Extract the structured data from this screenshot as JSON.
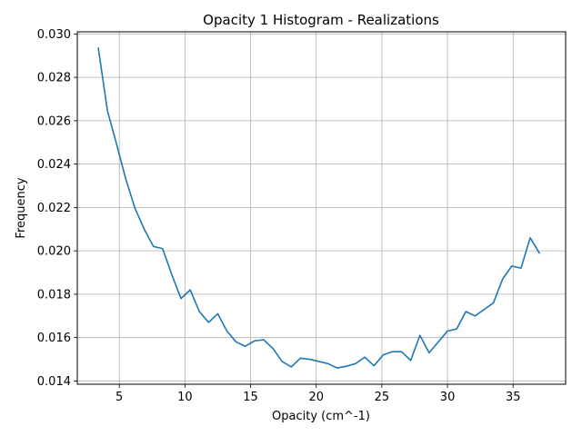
{
  "chart_data": {
    "type": "line",
    "title": "Opacity 1 Histogram - Realizations",
    "xlabel": "Opacity (cm^-1)",
    "ylabel": "Frequency",
    "xlim": [
      1.8,
      39.0
    ],
    "ylim": [
      0.01385,
      0.0301
    ],
    "xticks": [
      5,
      10,
      15,
      20,
      25,
      30,
      35
    ],
    "yticks": [
      0.014,
      0.016,
      0.018,
      0.02,
      0.022,
      0.024,
      0.026,
      0.028,
      0.03
    ],
    "grid": true,
    "line_color": "#1f77b4",
    "series": [
      {
        "x": [
          3.4,
          4.1,
          4.8,
          5.5,
          6.2,
          6.9,
          7.6,
          8.3,
          9.0,
          9.7,
          10.4,
          11.1,
          11.8,
          12.5,
          13.2,
          13.9,
          14.6,
          15.3,
          16.0,
          16.7,
          17.4,
          18.1,
          18.8,
          19.5,
          20.2,
          20.9,
          21.6,
          22.3,
          23.0,
          23.7,
          24.4,
          25.1,
          25.8,
          26.5,
          27.2,
          27.9,
          28.6,
          29.3,
          30.0,
          30.7,
          31.4,
          32.1,
          32.8,
          33.5,
          34.2,
          34.9,
          35.6,
          36.3,
          37.0
        ],
        "y": [
          0.02935,
          0.02645,
          0.0249,
          0.0233,
          0.02195,
          0.021,
          0.0202,
          0.0201,
          0.0189,
          0.0178,
          0.0182,
          0.0172,
          0.0167,
          0.0171,
          0.0163,
          0.0158,
          0.0156,
          0.01585,
          0.0159,
          0.0155,
          0.0149,
          0.01465,
          0.01505,
          0.015,
          0.0149,
          0.0148,
          0.0146,
          0.01468,
          0.0148,
          0.0151,
          0.0147,
          0.0152,
          0.01535,
          0.01535,
          0.01495,
          0.0161,
          0.0153,
          0.0158,
          0.0163,
          0.0164,
          0.0172,
          0.017,
          0.0173,
          0.0176,
          0.0187,
          0.0193,
          0.0192,
          0.0206,
          0.0199
        ]
      }
    ]
  }
}
